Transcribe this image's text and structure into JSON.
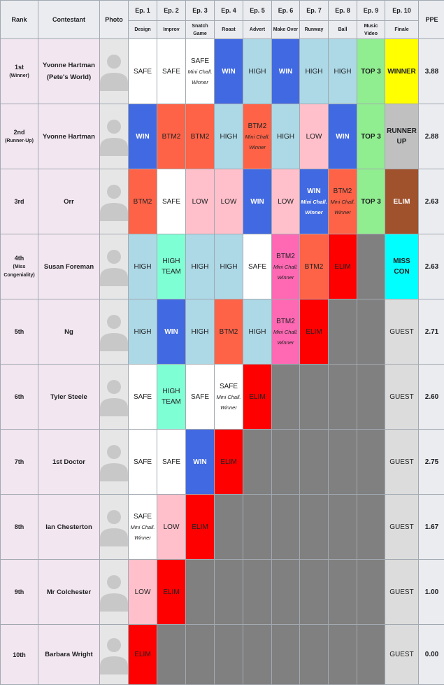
{
  "headers": {
    "rank": "Rank",
    "contestant": "Contestant",
    "photo": "Photo",
    "ppe": "PPE",
    "episodes": [
      {
        "num": "Ep. 1",
        "theme": "Design"
      },
      {
        "num": "Ep. 2",
        "theme": "Improv"
      },
      {
        "num": "Ep. 3",
        "theme": "Snatch Game"
      },
      {
        "num": "Ep. 4",
        "theme": "Roast"
      },
      {
        "num": "Ep. 5",
        "theme": "Advert"
      },
      {
        "num": "Ep. 6",
        "theme": "Make Over"
      },
      {
        "num": "Ep. 7",
        "theme": "Runway"
      },
      {
        "num": "Ep. 8",
        "theme": "Ball"
      },
      {
        "num": "Ep. 9",
        "theme": "Music Video"
      },
      {
        "num": "Ep. 10",
        "theme": "Finale"
      }
    ]
  },
  "colors": {
    "SAFE": "#ffffff",
    "WIN": "#4169e1",
    "HIGH": "#add8e6",
    "LOW": "#ffc0cb",
    "BTM2": "#ff6347",
    "ELIM": "#ff0000",
    "TOP3": "#90ee90",
    "WINNER": "#ffff00",
    "RUNNERUP": "#c0c0c0",
    "ELIMFINAL": "#a0522d",
    "HIGHTEAM": "#7fffd4",
    "MISSCON": "#00ffff",
    "BTM2PINK": "#ff69b4",
    "GUEST": "#dcdcdc",
    "OUT": "#808080"
  },
  "rows": [
    {
      "rank": "1st",
      "rank_sub": "(Winner)",
      "name": "Yvonne Hartman (Pete's World)",
      "ppe": "3.88",
      "cells": [
        {
          "text": "SAFE",
          "c": "SAFE"
        },
        {
          "text": "SAFE",
          "c": "SAFE"
        },
        {
          "text": "SAFE",
          "mini": "Mini Chall. Winner",
          "c": "SAFE"
        },
        {
          "text": "WIN",
          "c": "WIN",
          "bold": true
        },
        {
          "text": "HIGH",
          "c": "HIGH"
        },
        {
          "text": "WIN",
          "c": "WIN",
          "bold": true
        },
        {
          "text": "HIGH",
          "c": "HIGH"
        },
        {
          "text": "HIGH",
          "c": "HIGH"
        },
        {
          "text": "TOP 3",
          "c": "TOP3",
          "bold": true
        },
        {
          "text": "WINNER",
          "c": "WINNER",
          "bold": true
        }
      ]
    },
    {
      "rank": "2nd",
      "rank_sub": "(Runner-Up)",
      "name": "Yvonne Hartman",
      "ppe": "2.88",
      "cells": [
        {
          "text": "WIN",
          "c": "WIN",
          "bold": true
        },
        {
          "text": "BTM2",
          "c": "BTM2"
        },
        {
          "text": "BTM2",
          "c": "BTM2"
        },
        {
          "text": "HIGH",
          "c": "HIGH"
        },
        {
          "text": "BTM2",
          "mini": "Mini Chall. Winner",
          "c": "BTM2"
        },
        {
          "text": "HIGH",
          "c": "HIGH"
        },
        {
          "text": "LOW",
          "c": "LOW"
        },
        {
          "text": "WIN",
          "c": "WIN",
          "bold": true
        },
        {
          "text": "TOP 3",
          "c": "TOP3",
          "bold": true
        },
        {
          "text": "RUNNER UP",
          "c": "RUNNERUP",
          "bold": true
        }
      ]
    },
    {
      "rank": "3rd",
      "rank_sub": "",
      "name": "Orr",
      "ppe": "2.63",
      "cells": [
        {
          "text": "BTM2",
          "c": "BTM2"
        },
        {
          "text": "SAFE",
          "c": "SAFE"
        },
        {
          "text": "LOW",
          "c": "LOW"
        },
        {
          "text": "LOW",
          "c": "LOW"
        },
        {
          "text": "WIN",
          "c": "WIN",
          "bold": true
        },
        {
          "text": "LOW",
          "c": "LOW"
        },
        {
          "text": "WIN",
          "mini": "Mini Chall. Winner",
          "c": "WIN",
          "bold": true
        },
        {
          "text": "BTM2",
          "mini": "Mini Chall. Winner",
          "c": "BTM2"
        },
        {
          "text": "TOP 3",
          "c": "TOP3",
          "bold": true
        },
        {
          "text": "ELIM",
          "c": "ELIMFINAL",
          "bold": true
        }
      ]
    },
    {
      "rank": "4th",
      "rank_sub": "(Miss Congeniality)",
      "name": "Susan Foreman",
      "ppe": "2.63",
      "cells": [
        {
          "text": "HIGH",
          "c": "HIGH"
        },
        {
          "text": "HIGH TEAM",
          "c": "HIGHTEAM"
        },
        {
          "text": "HIGH",
          "c": "HIGH"
        },
        {
          "text": "HIGH",
          "c": "HIGH"
        },
        {
          "text": "SAFE",
          "c": "SAFE"
        },
        {
          "text": "BTM2",
          "mini": "Mini Chall. Winner",
          "c": "BTM2PINK"
        },
        {
          "text": "BTM2",
          "c": "BTM2"
        },
        {
          "text": "ELIM",
          "c": "ELIM"
        },
        {
          "text": "",
          "c": "OUT"
        },
        {
          "text": "MISS CON",
          "c": "MISSCON",
          "bold": true
        }
      ]
    },
    {
      "rank": "5th",
      "rank_sub": "",
      "name": "Ng",
      "ppe": "2.71",
      "cells": [
        {
          "text": "HIGH",
          "c": "HIGH"
        },
        {
          "text": "WIN",
          "c": "WIN",
          "bold": true
        },
        {
          "text": "HIGH",
          "c": "HIGH"
        },
        {
          "text": "BTM2",
          "c": "BTM2"
        },
        {
          "text": "HIGH",
          "c": "HIGH"
        },
        {
          "text": "BTM2",
          "mini": "Mini Chall. Winner",
          "c": "BTM2PINK"
        },
        {
          "text": "ELIM",
          "c": "ELIM"
        },
        {
          "text": "",
          "c": "OUT"
        },
        {
          "text": "",
          "c": "OUT"
        },
        {
          "text": "GUEST",
          "c": "GUEST"
        }
      ]
    },
    {
      "rank": "6th",
      "rank_sub": "",
      "name": "Tyler Steele",
      "ppe": "2.60",
      "cells": [
        {
          "text": "SAFE",
          "c": "SAFE"
        },
        {
          "text": "HIGH TEAM",
          "c": "HIGHTEAM"
        },
        {
          "text": "SAFE",
          "c": "SAFE"
        },
        {
          "text": "SAFE",
          "mini": "Mini Chall. Winner",
          "c": "SAFE"
        },
        {
          "text": "ELIM",
          "c": "ELIM"
        },
        {
          "text": "",
          "c": "OUT"
        },
        {
          "text": "",
          "c": "OUT"
        },
        {
          "text": "",
          "c": "OUT"
        },
        {
          "text": "",
          "c": "OUT"
        },
        {
          "text": "GUEST",
          "c": "GUEST"
        }
      ]
    },
    {
      "rank": "7th",
      "rank_sub": "",
      "name": "1st Doctor",
      "ppe": "2.75",
      "cells": [
        {
          "text": "SAFE",
          "c": "SAFE"
        },
        {
          "text": "SAFE",
          "c": "SAFE"
        },
        {
          "text": "WIN",
          "c": "WIN",
          "bold": true
        },
        {
          "text": "ELIM",
          "c": "ELIM"
        },
        {
          "text": "",
          "c": "OUT"
        },
        {
          "text": "",
          "c": "OUT"
        },
        {
          "text": "",
          "c": "OUT"
        },
        {
          "text": "",
          "c": "OUT"
        },
        {
          "text": "",
          "c": "OUT"
        },
        {
          "text": "GUEST",
          "c": "GUEST"
        }
      ]
    },
    {
      "rank": "8th",
      "rank_sub": "",
      "name": "Ian Chesterton",
      "ppe": "1.67",
      "cells": [
        {
          "text": "SAFE",
          "mini": "Mini Chall. Winner",
          "c": "SAFE"
        },
        {
          "text": "LOW",
          "c": "LOW"
        },
        {
          "text": "ELIM",
          "c": "ELIM"
        },
        {
          "text": "",
          "c": "OUT"
        },
        {
          "text": "",
          "c": "OUT"
        },
        {
          "text": "",
          "c": "OUT"
        },
        {
          "text": "",
          "c": "OUT"
        },
        {
          "text": "",
          "c": "OUT"
        },
        {
          "text": "",
          "c": "OUT"
        },
        {
          "text": "GUEST",
          "c": "GUEST"
        }
      ]
    },
    {
      "rank": "9th",
      "rank_sub": "",
      "name": "Mr Colchester",
      "ppe": "1.00",
      "cells": [
        {
          "text": "LOW",
          "c": "LOW"
        },
        {
          "text": "ELIM",
          "c": "ELIM"
        },
        {
          "text": "",
          "c": "OUT"
        },
        {
          "text": "",
          "c": "OUT"
        },
        {
          "text": "",
          "c": "OUT"
        },
        {
          "text": "",
          "c": "OUT"
        },
        {
          "text": "",
          "c": "OUT"
        },
        {
          "text": "",
          "c": "OUT"
        },
        {
          "text": "",
          "c": "OUT"
        },
        {
          "text": "GUEST",
          "c": "GUEST"
        }
      ]
    },
    {
      "rank": "10th",
      "rank_sub": "",
      "name": "Barbara Wright",
      "ppe": "0.00",
      "cells": [
        {
          "text": "ELIM",
          "c": "ELIM"
        },
        {
          "text": "",
          "c": "OUT"
        },
        {
          "text": "",
          "c": "OUT"
        },
        {
          "text": "",
          "c": "OUT"
        },
        {
          "text": "",
          "c": "OUT"
        },
        {
          "text": "",
          "c": "OUT"
        },
        {
          "text": "",
          "c": "OUT"
        },
        {
          "text": "",
          "c": "OUT"
        },
        {
          "text": "",
          "c": "OUT"
        },
        {
          "text": "GUEST",
          "c": "GUEST"
        }
      ]
    }
  ]
}
